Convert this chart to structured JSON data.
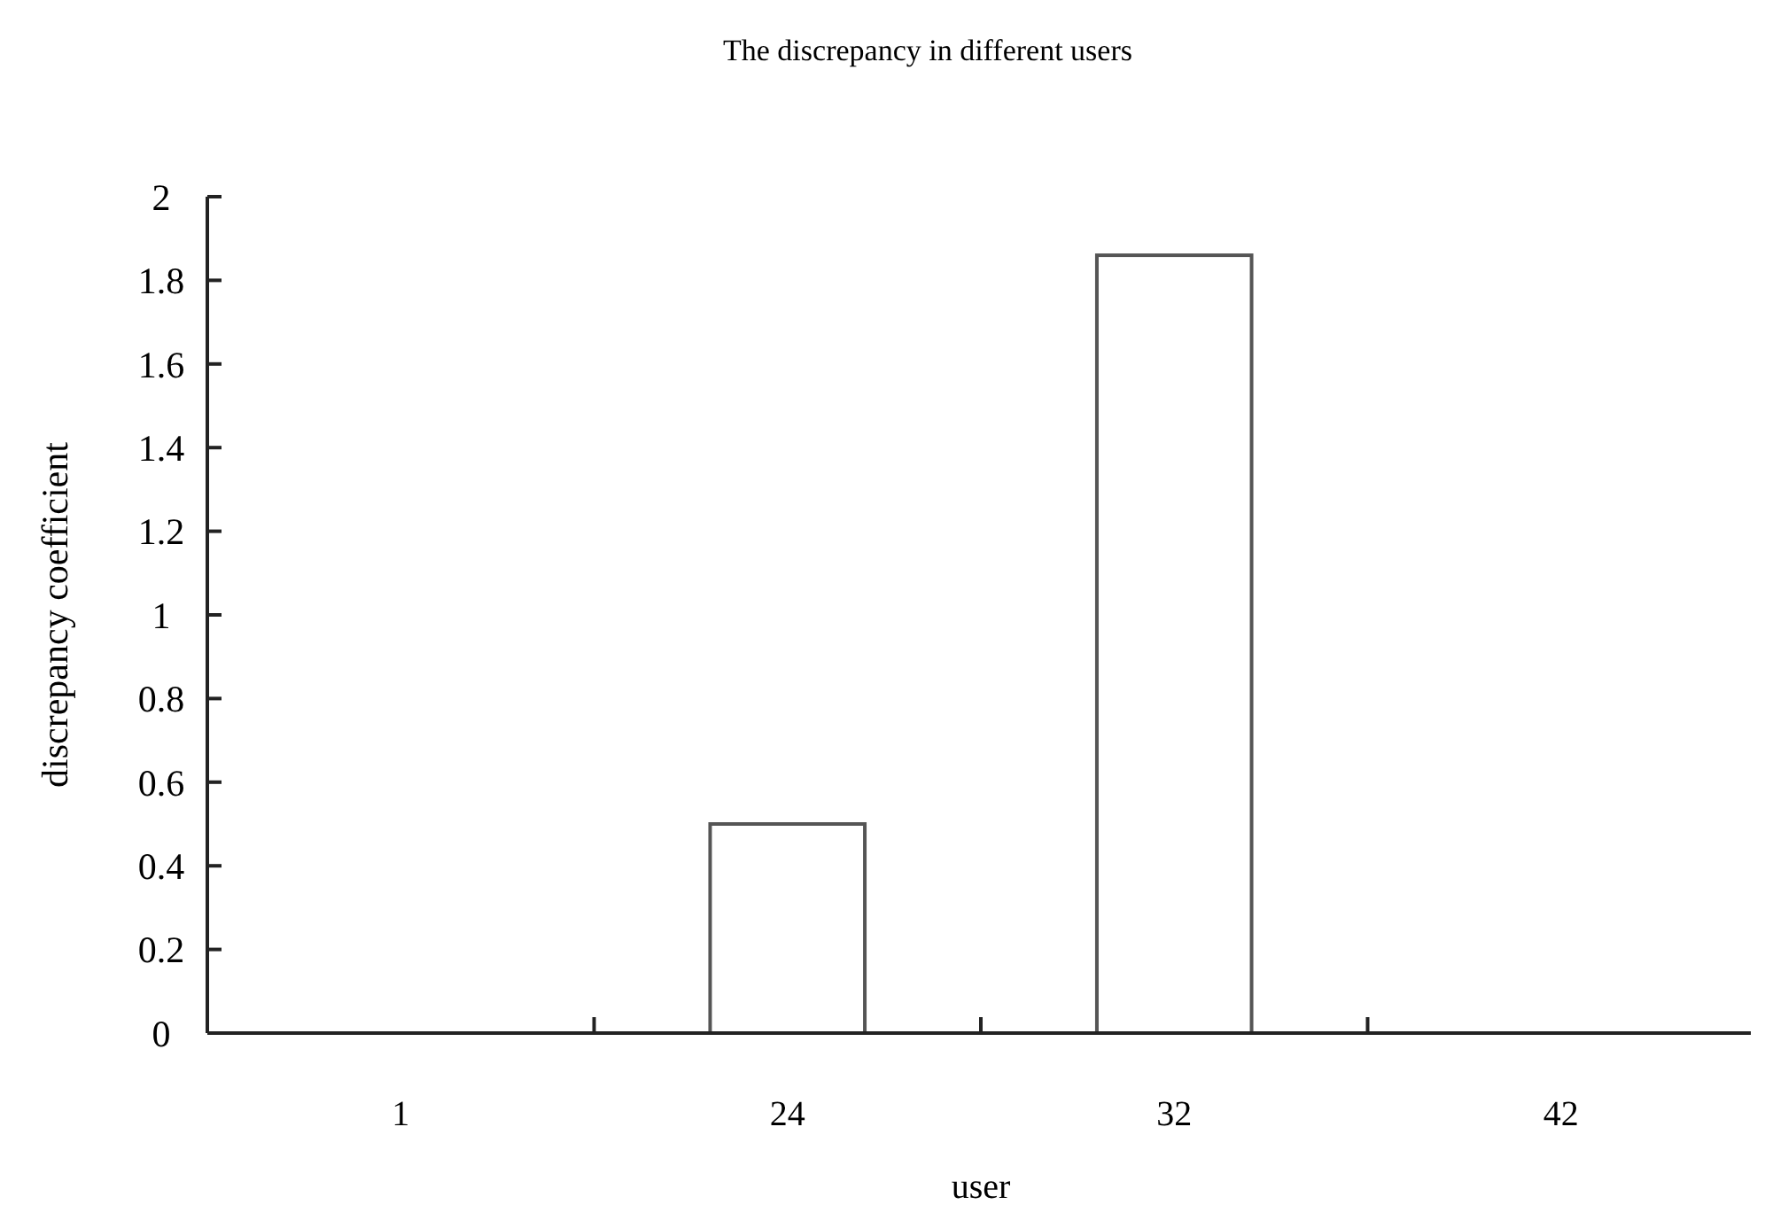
{
  "chart_data": {
    "type": "bar",
    "title": "The discrepancy in different users",
    "xlabel": "user",
    "ylabel": "discrepancy coefficient",
    "categories": [
      "1",
      "24",
      "32",
      "42"
    ],
    "series": [
      {
        "color": "#ffffff",
        "values": [
          0,
          0.5,
          1.86,
          0
        ]
      }
    ],
    "ylim": [
      0,
      2
    ],
    "yticks": [
      0,
      0.2,
      0.4,
      0.6,
      0.8,
      1,
      1.2,
      1.4,
      1.6,
      1.8,
      2
    ],
    "grid": false
  }
}
